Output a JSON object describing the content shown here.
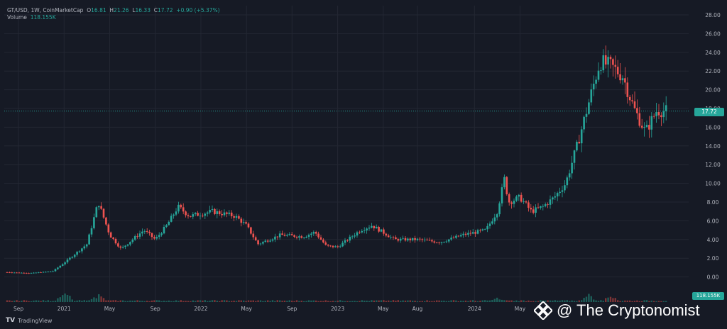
{
  "header": {
    "symbol": "GT/USD, 1W, CoinMarketCap",
    "o_label": "O",
    "open": "16.81",
    "h_label": "H",
    "high": "21.26",
    "l_label": "L",
    "low": "16.33",
    "c_label": "C",
    "close": "17.72",
    "change": "+0.90 (+5.37%)",
    "volume_label": "Volume",
    "volume": "118.155K"
  },
  "price_tag": "17.72",
  "volume_tag": "118.155K",
  "platform_logo_text": "TradingView",
  "watermark_text": "@ The Cryptonomist",
  "colors": {
    "background": "#161a25",
    "up": "#26a69a",
    "down": "#ef5350",
    "grid": "#232733",
    "text": "#b2b5be"
  },
  "chart_data": {
    "type": "candlestick",
    "title": "GT/USD, 1W, CoinMarketCap",
    "ylim": [
      -1,
      28
    ],
    "yticks": [
      "28.00",
      "26.00",
      "24.00",
      "22.00",
      "20.00",
      "18.00",
      "16.00",
      "14.00",
      "12.00",
      "10.00",
      "8.00",
      "6.00",
      "4.00",
      "2.00",
      "0.00"
    ],
    "xticks": [
      "Sep",
      "2021",
      "May",
      "Sep",
      "2022",
      "May",
      "Sep",
      "2023",
      "May",
      "Aug",
      "2024",
      "May"
    ],
    "grid": true,
    "last_price": 17.72,
    "anchors": [
      {
        "date": "2020-08",
        "close": 0.5
      },
      {
        "date": "2020-10",
        "close": 0.4
      },
      {
        "date": "2020-12",
        "close": 0.6
      },
      {
        "date": "2021-01",
        "close": 1.5
      },
      {
        "date": "2021-02",
        "close": 2.5
      },
      {
        "date": "2021-03",
        "close": 3.5
      },
      {
        "date": "2021-04",
        "close": 8.0
      },
      {
        "date": "2021-05",
        "close": 4.5
      },
      {
        "date": "2021-06",
        "close": 3.0
      },
      {
        "date": "2021-07",
        "close": 4.0
      },
      {
        "date": "2021-08",
        "close": 5.0
      },
      {
        "date": "2021-09",
        "close": 4.0
      },
      {
        "date": "2021-10",
        "close": 5.5
      },
      {
        "date": "2021-11",
        "close": 7.5
      },
      {
        "date": "2021-12",
        "close": 6.5
      },
      {
        "date": "2022-02",
        "close": 7.0
      },
      {
        "date": "2022-04",
        "close": 6.5
      },
      {
        "date": "2022-05",
        "close": 5.5
      },
      {
        "date": "2022-06",
        "close": 3.5
      },
      {
        "date": "2022-08",
        "close": 4.5
      },
      {
        "date": "2022-10",
        "close": 4.3
      },
      {
        "date": "2022-11",
        "close": 4.8
      },
      {
        "date": "2022-12",
        "close": 3.3
      },
      {
        "date": "2023-01",
        "close": 3.2
      },
      {
        "date": "2023-03",
        "close": 5.0
      },
      {
        "date": "2023-04",
        "close": 5.5
      },
      {
        "date": "2023-06",
        "close": 4.0
      },
      {
        "date": "2023-08",
        "close": 4.0
      },
      {
        "date": "2023-10",
        "close": 3.7
      },
      {
        "date": "2023-12",
        "close": 4.5
      },
      {
        "date": "2024-02",
        "close": 5.0
      },
      {
        "date": "2024-03",
        "close": 7.0
      },
      {
        "date": "2024-03-20",
        "close": 10.5
      },
      {
        "date": "2024-04",
        "close": 8.0
      },
      {
        "date": "2024-05",
        "close": 8.5
      },
      {
        "date": "2024-06",
        "close": 7.0
      },
      {
        "date": "2024-07",
        "close": 7.5
      },
      {
        "date": "2024-08",
        "close": 8.5
      },
      {
        "date": "2024-09",
        "close": 10.0
      },
      {
        "date": "2024-10",
        "close": 14.0
      },
      {
        "date": "2024-11",
        "close": 18.5
      },
      {
        "date": "2024-12",
        "close": 23.0
      },
      {
        "date": "2025-01",
        "close": 22.5
      },
      {
        "date": "2025-02",
        "close": 21.5
      },
      {
        "date": "2025-03",
        "close": 18.0
      },
      {
        "date": "2025-04",
        "close": 15.5
      },
      {
        "date": "2025-05",
        "close": 17.8
      },
      {
        "date": "2025-06",
        "close": 17.72
      }
    ],
    "volume_peaks": [
      {
        "date": "2021-01",
        "level": "high"
      },
      {
        "date": "2021-04",
        "level": "medium"
      },
      {
        "date": "2024-03",
        "level": "low"
      },
      {
        "date": "2024-11",
        "level": "medium"
      },
      {
        "date": "2025-01",
        "level": "medium"
      }
    ]
  }
}
